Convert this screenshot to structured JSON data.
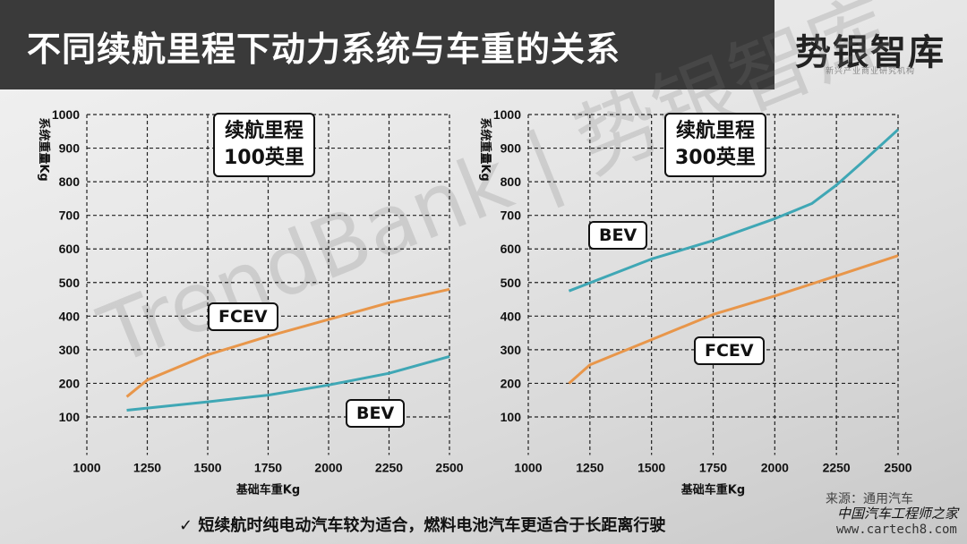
{
  "title": "不同续航里程下动力系统与车重的关系",
  "logo": {
    "name": "势银智库",
    "subtitle": "新兴产业商业研究机构"
  },
  "watermark": "TrendBank | 势银智库",
  "colors": {
    "fcev": "#e8964a",
    "bev": "#3fa7b5"
  },
  "chart_data": [
    {
      "type": "line",
      "title": "续航里程\n100英里",
      "title_lines": [
        "续航里程",
        "100英里"
      ],
      "xlabel": "基础车重Kg",
      "ylabel": "系统重量Kg",
      "xlim": [
        1000,
        2500
      ],
      "ylim": [
        0,
        1000
      ],
      "xticks": [
        1000,
        1250,
        1500,
        1750,
        2000,
        2250,
        2500
      ],
      "yticks": [
        100,
        200,
        300,
        400,
        500,
        600,
        700,
        800,
        900,
        1000
      ],
      "grid": "dashed",
      "series": [
        {
          "name": "FCEV",
          "x": [
            1165,
            1250,
            1500,
            1750,
            2000,
            2250,
            2500
          ],
          "y": [
            160,
            210,
            285,
            340,
            390,
            440,
            480
          ]
        },
        {
          "name": "BEV",
          "x": [
            1165,
            1500,
            1750,
            2000,
            2250,
            2500
          ],
          "y": [
            120,
            145,
            165,
            195,
            230,
            280
          ]
        }
      ]
    },
    {
      "type": "line",
      "title": "续航里程\n300英里",
      "title_lines": [
        "续航里程",
        "300英里"
      ],
      "xlabel": "基础车重Kg",
      "ylabel": "系统重量Kg",
      "xlim": [
        1000,
        2500
      ],
      "ylim": [
        0,
        1000
      ],
      "xticks": [
        1000,
        1250,
        1500,
        1750,
        2000,
        2250,
        2500
      ],
      "yticks": [
        100,
        200,
        300,
        400,
        500,
        600,
        700,
        800,
        900,
        1000
      ],
      "grid": "dashed",
      "series": [
        {
          "name": "BEV",
          "x": [
            1165,
            1500,
            1750,
            2000,
            2150,
            2250,
            2350,
            2500
          ],
          "y": [
            475,
            570,
            625,
            690,
            735,
            790,
            855,
            955
          ]
        },
        {
          "name": "FCEV",
          "x": [
            1165,
            1250,
            1500,
            1750,
            2000,
            2250,
            2500
          ],
          "y": [
            200,
            255,
            330,
            405,
            460,
            520,
            580
          ]
        }
      ]
    }
  ],
  "conclusion": "✓  短续航时纯电动汽车较为适合，燃料电池汽车更适合于长距离行驶",
  "source": "来源：通用汽车",
  "site_name": "中国汽车工程师之家",
  "site_url": "www.cartech8.com"
}
